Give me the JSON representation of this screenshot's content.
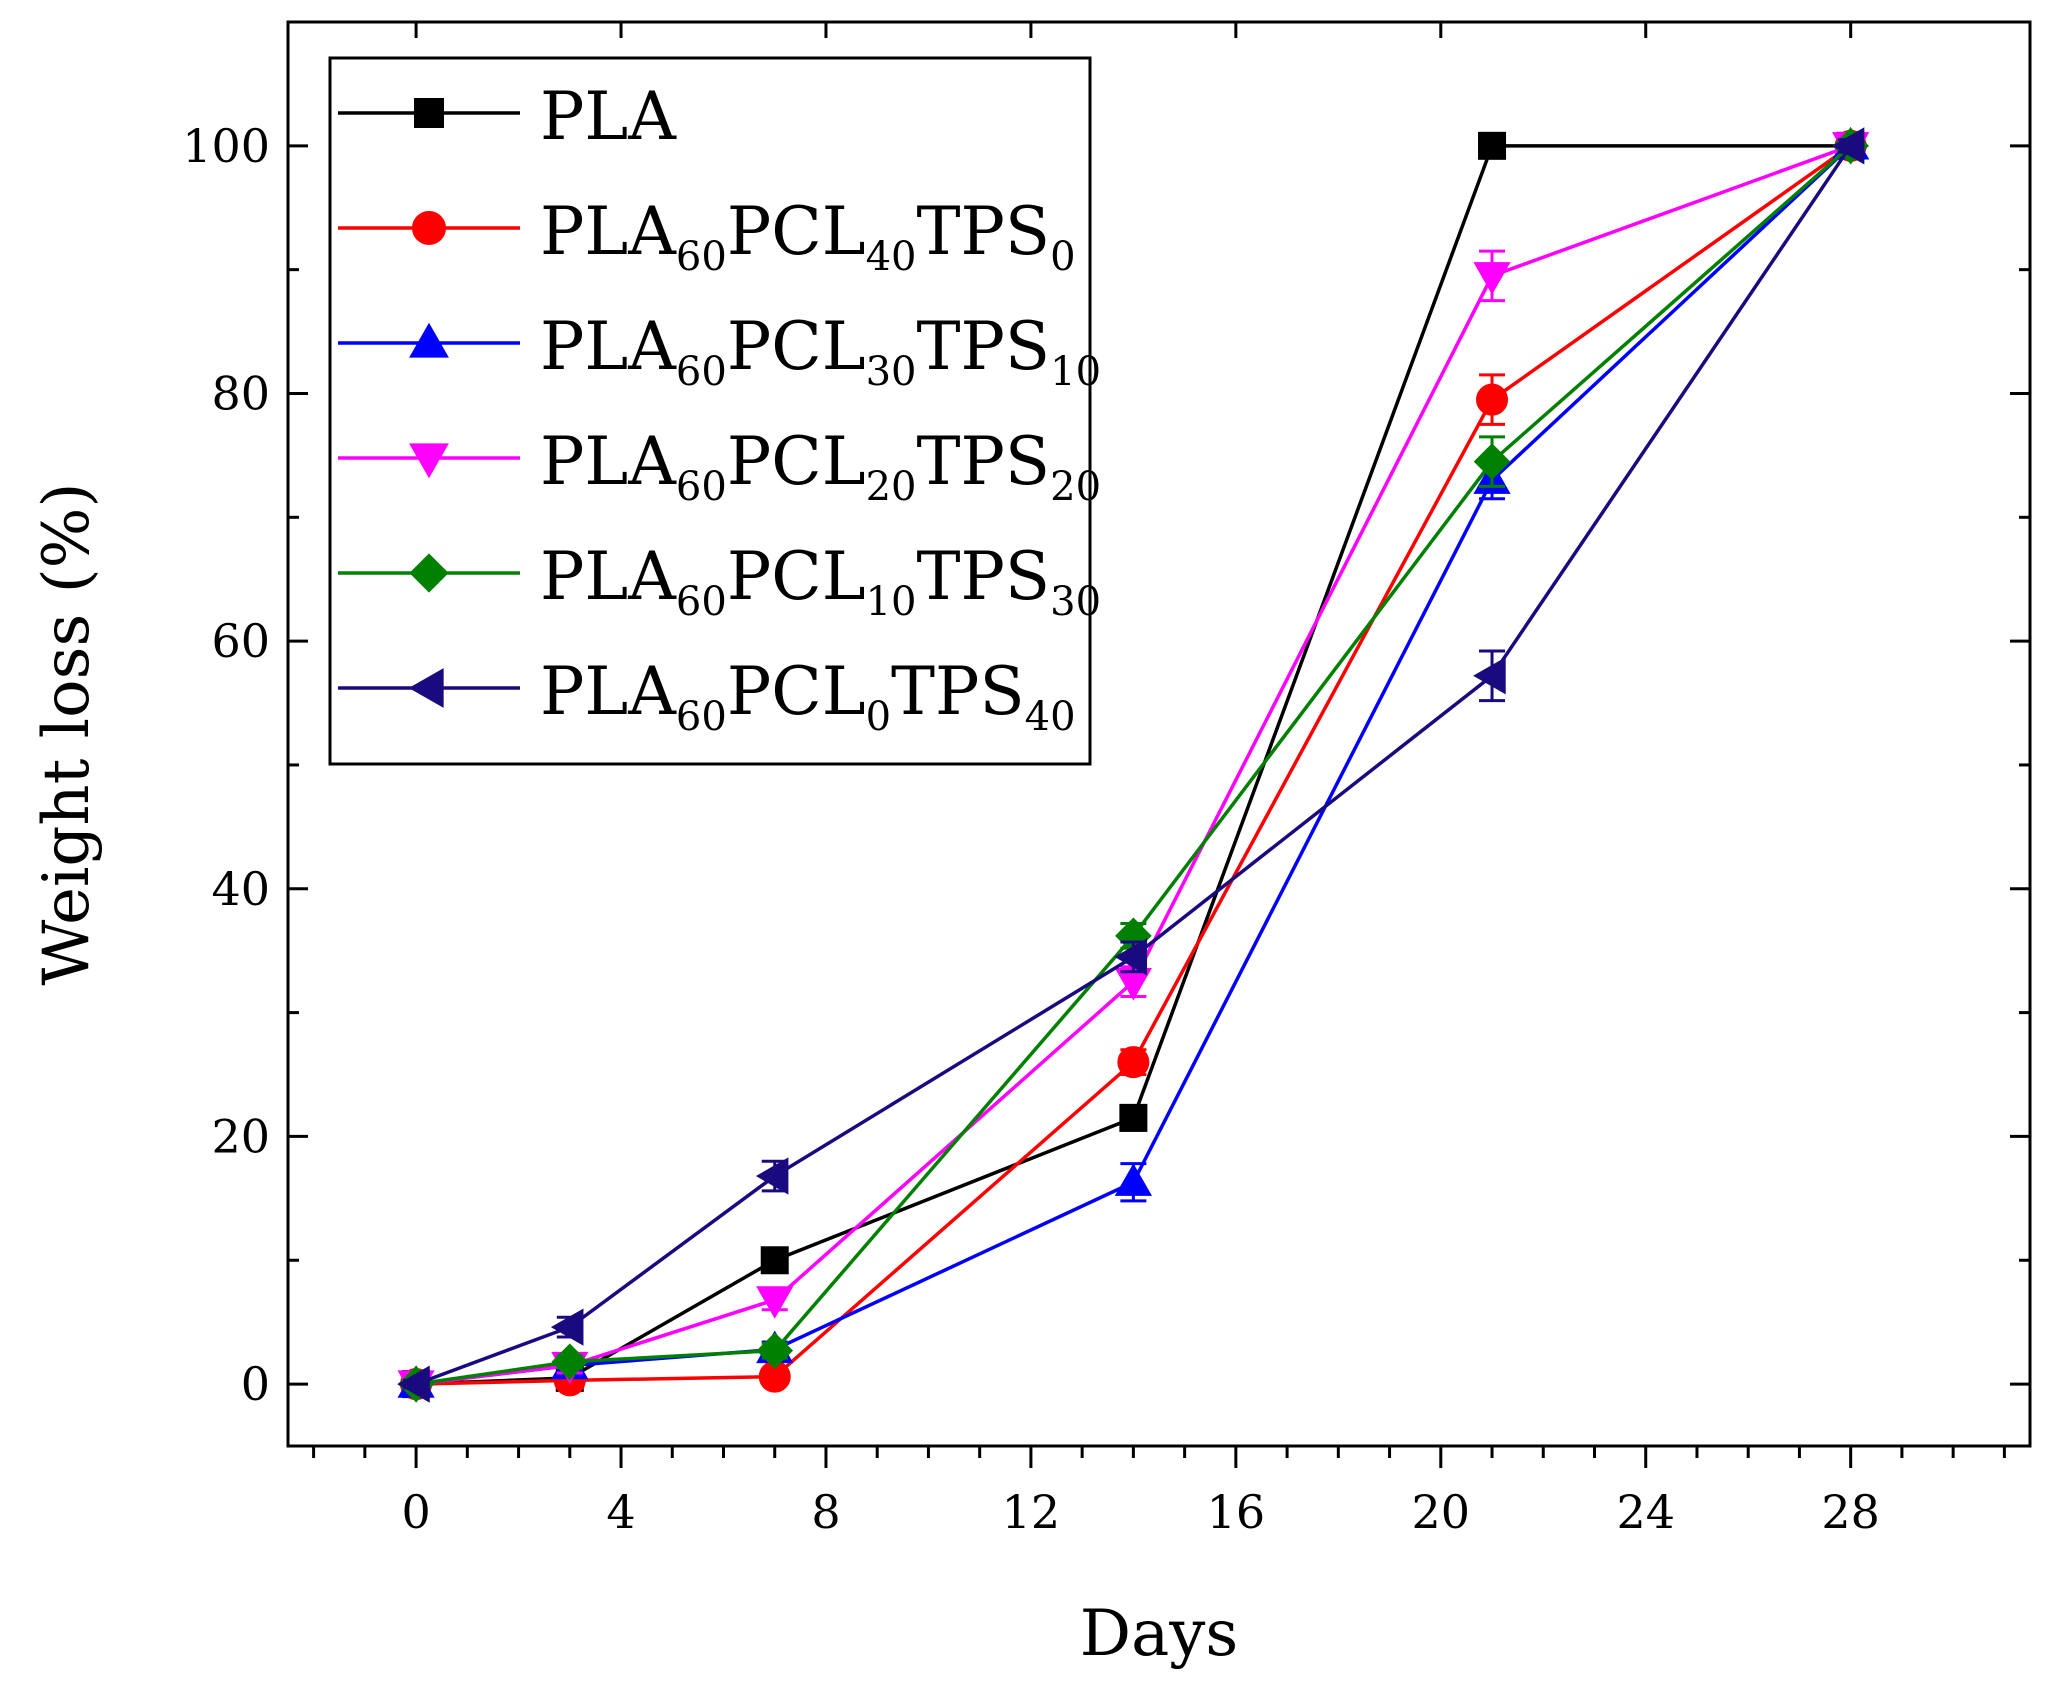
{
  "chart_data": {
    "type": "line",
    "title": "",
    "xlabel": "Days",
    "ylabel": "Weight loss (%)",
    "xlim": [
      -2.5,
      31.5
    ],
    "ylim": [
      -5,
      110
    ],
    "x_ticks": [
      0,
      4,
      8,
      12,
      16,
      20,
      24,
      28
    ],
    "y_ticks": [
      0,
      20,
      40,
      60,
      80,
      100
    ],
    "x_tick_labels": [
      "0",
      "4",
      "8",
      "12",
      "16",
      "20",
      "24",
      "28"
    ],
    "y_tick_labels": [
      "0",
      "20",
      "40",
      "60",
      "80",
      "100"
    ],
    "legend_position": "top-left",
    "x": [
      0,
      3,
      7,
      14,
      21,
      28
    ],
    "series": [
      {
        "name": "PLA",
        "label": {
          "base": "PLA",
          "parts": []
        },
        "color": "#000000",
        "marker": "square",
        "values": [
          0,
          0.5,
          10,
          21.5,
          100,
          100
        ],
        "errors": [
          0.3,
          0.5,
          0.8,
          1.0,
          0.5,
          0.5
        ]
      },
      {
        "name": "PLA60PCL40TPS0",
        "label": {
          "base": "PLA",
          "parts": [
            {
              "t": "60",
              "sub": true
            },
            {
              "t": "PCL",
              "sub": false
            },
            {
              "t": "40",
              "sub": true
            },
            {
              "t": "TPS",
              "sub": false
            },
            {
              "t": "0",
              "sub": true
            }
          ]
        },
        "color": "#ff0000",
        "marker": "circle",
        "values": [
          0,
          0.3,
          0.6,
          26,
          79.5,
          100
        ],
        "errors": [
          0.3,
          0.4,
          0.5,
          1.0,
          2.0,
          0.5
        ]
      },
      {
        "name": "PLA60PCL30TPS10",
        "label": {
          "base": "PLA",
          "parts": [
            {
              "t": "60",
              "sub": true
            },
            {
              "t": "PCL",
              "sub": false
            },
            {
              "t": "30",
              "sub": true
            },
            {
              "t": "TPS",
              "sub": false
            },
            {
              "t": "10",
              "sub": true
            }
          ]
        },
        "color": "#0000ff",
        "marker": "triangle-up",
        "values": [
          0,
          1.5,
          2.8,
          16.3,
          73,
          100
        ],
        "errors": [
          0.3,
          0.6,
          0.6,
          1.5,
          1.5,
          0.5
        ]
      },
      {
        "name": "PLA60PCL20TPS20",
        "label": {
          "base": "PLA",
          "parts": [
            {
              "t": "60",
              "sub": true
            },
            {
              "t": "PCL",
              "sub": false
            },
            {
              "t": "20",
              "sub": true
            },
            {
              "t": "TPS",
              "sub": false
            },
            {
              "t": "20",
              "sub": true
            }
          ]
        },
        "color": "#ff00ff",
        "marker": "triangle-down",
        "values": [
          0,
          1.5,
          6.8,
          32.5,
          89.5,
          100
        ],
        "errors": [
          0.3,
          0.6,
          0.8,
          1.2,
          2.0,
          0.5
        ]
      },
      {
        "name": "PLA60PCL10TPS30",
        "label": {
          "base": "PLA",
          "parts": [
            {
              "t": "60",
              "sub": true
            },
            {
              "t": "PCL",
              "sub": false
            },
            {
              "t": "10",
              "sub": true
            },
            {
              "t": "TPS",
              "sub": false
            },
            {
              "t": "30",
              "sub": true
            }
          ]
        },
        "color": "#008000",
        "marker": "diamond",
        "values": [
          0,
          1.8,
          2.7,
          36.2,
          74.5,
          100
        ],
        "errors": [
          0.3,
          0.5,
          0.6,
          1.0,
          2.0,
          0.5
        ]
      },
      {
        "name": "PLA60PCL0TPS40",
        "label": {
          "base": "PLA",
          "parts": [
            {
              "t": "60",
              "sub": true
            },
            {
              "t": "PCL",
              "sub": false
            },
            {
              "t": "0",
              "sub": true
            },
            {
              "t": "TPS",
              "sub": false
            },
            {
              "t": "40",
              "sub": true
            }
          ]
        },
        "color": "#1a0a80",
        "marker": "triangle-left",
        "values": [
          0,
          4.6,
          16.8,
          34.5,
          57.2,
          100
        ],
        "errors": [
          0.3,
          0.8,
          1.2,
          1.2,
          2.0,
          0.5
        ]
      }
    ]
  }
}
